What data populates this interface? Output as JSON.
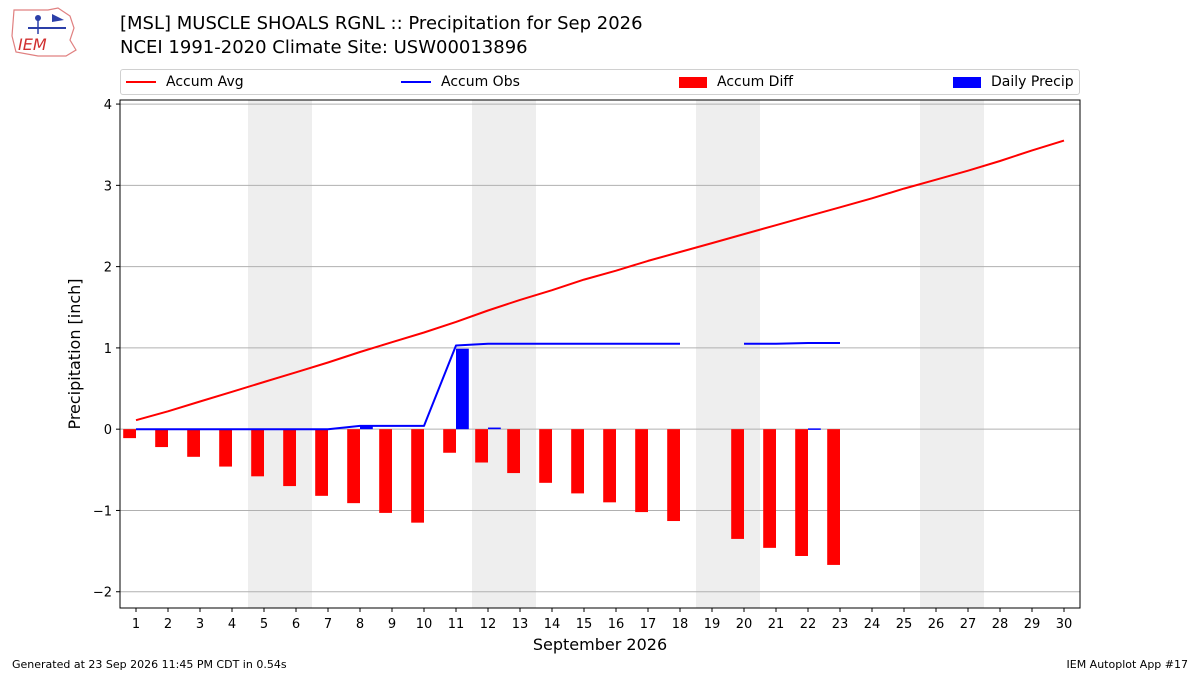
{
  "header": {
    "title_line1": "[MSL] MUSCLE SHOALS RGNL :: Precipitation for Sep 2026",
    "title_line2": "NCEI 1991-2020 Climate Site: USW00013896",
    "logo_text": "IEM",
    "logo_icon": "iowa-state-weather-logo-icon"
  },
  "footer": {
    "generated": "Generated at 23 Sep 2026 11:45 PM CDT in 0.54s",
    "app": "IEM Autoplot App #17"
  },
  "colors": {
    "accum_avg": "#ff0000",
    "accum_obs": "#0000ff",
    "accum_diff": "#ff0000",
    "daily_precip": "#0000ff",
    "weekend_band": "#eeeeee",
    "grid": "#b0b0b0"
  },
  "chart_data": {
    "type": "bar",
    "title": "[MSL] MUSCLE SHOALS RGNL :: Precipitation for Sep 2026",
    "subtitle": "NCEI 1991-2020 Climate Site: USW00013896",
    "xlabel": "September 2026",
    "ylabel": "Precipitation [inch]",
    "xlim": [
      0.5,
      30.5
    ],
    "ylim": [
      -2.2,
      4.05
    ],
    "yticks": [
      -2,
      -1,
      0,
      1,
      2,
      3,
      4
    ],
    "ytick_labels": [
      "−2",
      "−1",
      "0",
      "1",
      "2",
      "3",
      "4"
    ],
    "grid": true,
    "legend_position": "top",
    "x": [
      1,
      2,
      3,
      4,
      5,
      6,
      7,
      8,
      9,
      10,
      11,
      12,
      13,
      14,
      15,
      16,
      17,
      18,
      19,
      20,
      21,
      22,
      23,
      24,
      25,
      26,
      27,
      28,
      29,
      30
    ],
    "weekend_bands": [
      [
        5,
        6
      ],
      [
        12,
        13
      ],
      [
        19,
        20
      ],
      [
        26,
        27
      ]
    ],
    "series": [
      {
        "name": "Accum Avg",
        "kind": "line",
        "values": [
          0.11,
          0.22,
          0.34,
          0.46,
          0.58,
          0.7,
          0.82,
          0.95,
          1.07,
          1.19,
          1.32,
          1.46,
          1.59,
          1.71,
          1.84,
          1.95,
          2.07,
          2.18,
          2.29,
          2.4,
          2.51,
          2.62,
          2.73,
          2.84,
          2.96,
          3.07,
          3.18,
          3.3,
          3.43,
          3.55
        ]
      },
      {
        "name": "Accum Obs",
        "kind": "line",
        "values": [
          0.0,
          0.0,
          0.0,
          0.0,
          0.0,
          0.0,
          0.0,
          0.04,
          0.04,
          0.04,
          1.03,
          1.05,
          1.05,
          1.05,
          1.05,
          1.05,
          1.05,
          1.05,
          null,
          1.05,
          1.05,
          1.06,
          1.06,
          null,
          null,
          null,
          null,
          null,
          null,
          null
        ]
      },
      {
        "name": "Accum Diff",
        "kind": "bar",
        "values": [
          -0.11,
          -0.22,
          -0.34,
          -0.46,
          -0.58,
          -0.7,
          -0.82,
          -0.91,
          -1.03,
          -1.15,
          -0.29,
          -0.41,
          -0.54,
          -0.66,
          -0.79,
          -0.9,
          -1.02,
          -1.13,
          null,
          -1.35,
          -1.46,
          -1.56,
          -1.67,
          null,
          null,
          null,
          null,
          null,
          null,
          null
        ]
      },
      {
        "name": "Daily Precip",
        "kind": "bar",
        "values": [
          0,
          0,
          0,
          0,
          0,
          0,
          0,
          0.04,
          0,
          0,
          0.99,
          0.02,
          0,
          0,
          0,
          0,
          0,
          0,
          null,
          0,
          0,
          0.01,
          0,
          null,
          null,
          null,
          null,
          null,
          null,
          null
        ]
      }
    ]
  }
}
